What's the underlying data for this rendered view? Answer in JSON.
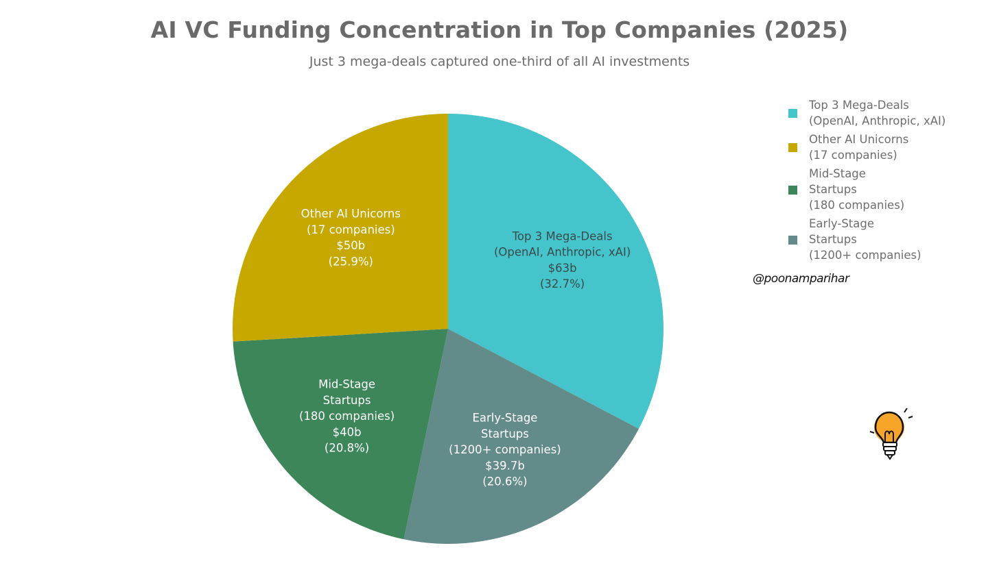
{
  "title": "AI VC Funding Concentration in Top Companies (2025)",
  "subtitle": "Just 3 mega-deals captured one-third of all AI investments",
  "handle": "@poonamparihar",
  "logo_icon": "lightbulb-icon",
  "colors": {
    "top3": "#45c5cb",
    "unicorns": "#c6a800",
    "mid": "#3c865a",
    "early": "#638b89"
  },
  "chart_data": {
    "type": "pie",
    "title": "AI VC Funding Concentration in Top Companies (2025)",
    "subtitle": "Just 3 mega-deals captured one-third of all AI investments",
    "legend_position": "top-right",
    "slices": [
      {
        "key": "top3",
        "label": "Top 3 Mega-Deals\n(OpenAI, Anthropic, xAI)",
        "value": 63,
        "value_label": "$63b",
        "percent_label": "(32.7%)",
        "color": "#45c5cb"
      },
      {
        "key": "early",
        "label": "Early-Stage\nStartups\n(1200+ companies)",
        "value": 39.7,
        "value_label": "$39.7b",
        "percent_label": "(20.6%)",
        "color": "#638b89"
      },
      {
        "key": "mid",
        "label": "Mid-Stage\nStartups\n(180 companies)",
        "value": 40,
        "value_label": "$40b",
        "percent_label": "(20.8%)",
        "color": "#3c865a"
      },
      {
        "key": "unicorns",
        "label": "Other AI Unicorns\n(17 companies)",
        "value": 50,
        "value_label": "$50b",
        "percent_label": "(25.9%)",
        "color": "#c6a800"
      }
    ],
    "legend": [
      {
        "key": "top3",
        "text": "Top 3 Mega-Deals\n(OpenAI, Anthropic, xAI)"
      },
      {
        "key": "unicorns",
        "text": "Other AI Unicorns\n(17 companies)"
      },
      {
        "key": "mid",
        "text": "Mid-Stage\nStartups\n(180 companies)"
      },
      {
        "key": "early",
        "text": "Early-Stage\nStartups\n(1200+ companies)"
      }
    ]
  }
}
